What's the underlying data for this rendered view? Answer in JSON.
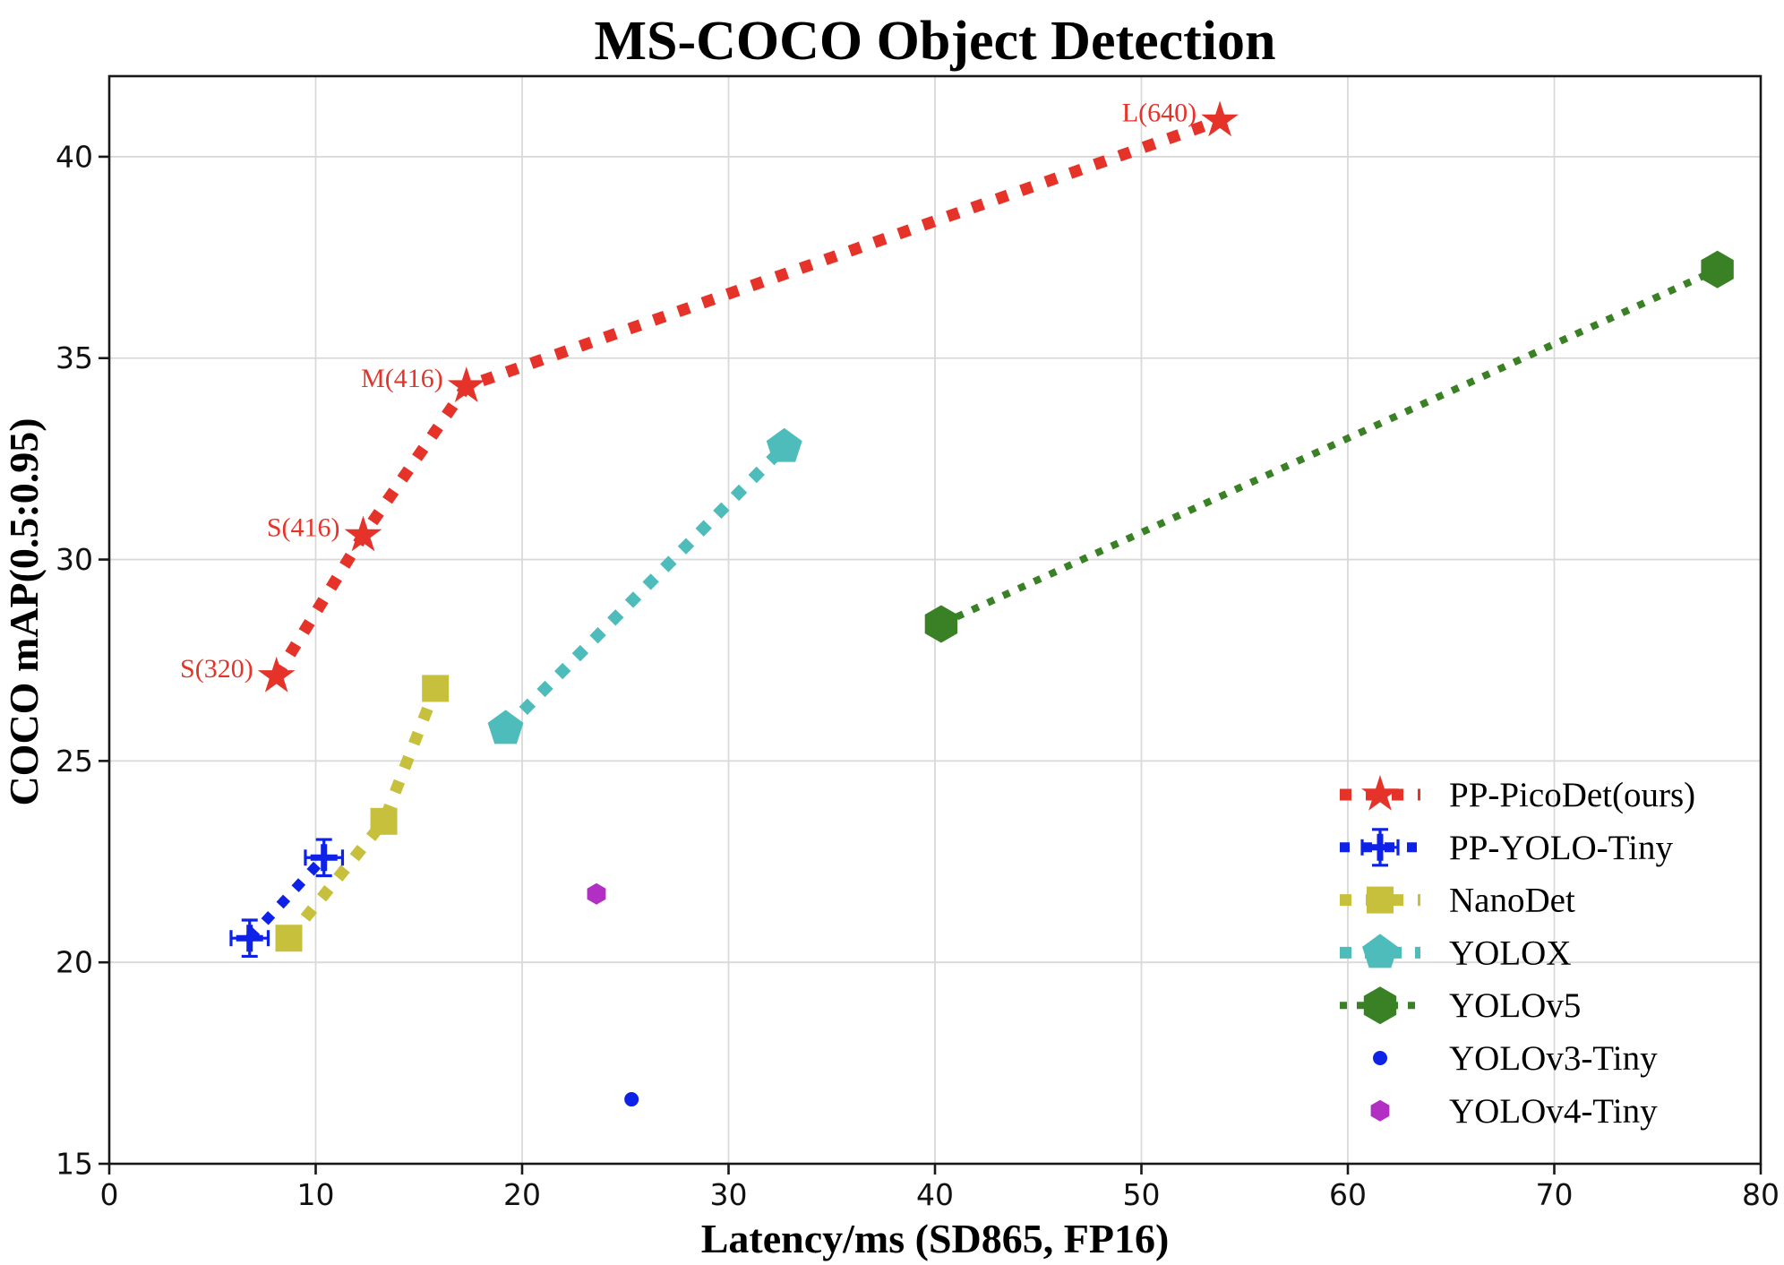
{
  "chart_data": {
    "type": "scatter",
    "title": "MS-COCO Object Detection",
    "xlabel": "Latency/ms (SD865, FP16)",
    "ylabel": "COCO mAP(0.5:0.95)",
    "xlim": [
      0,
      80
    ],
    "ylim": [
      15,
      42
    ],
    "xticks": [
      0,
      10,
      20,
      30,
      40,
      50,
      60,
      70,
      80
    ],
    "yticks": [
      15,
      20,
      25,
      30,
      35,
      40
    ],
    "grid": "on",
    "legend_position": "lower right",
    "grid_color": "#d9d9d9",
    "spine_color": "#181818",
    "series": [
      {
        "name": "PP-PicoDet(ours)",
        "color": "#e63329",
        "marker": "star",
        "size": 22,
        "line": "dotted",
        "lw": 13,
        "dash": "13 16",
        "points": [
          {
            "x": 8.1,
            "y": 27.1,
            "label": "S(320)"
          },
          {
            "x": 12.3,
            "y": 30.6,
            "label": "S(416)"
          },
          {
            "x": 17.3,
            "y": 34.3,
            "label": "M(416)"
          },
          {
            "x": 53.8,
            "y": 40.9,
            "label": "L(640)"
          }
        ]
      },
      {
        "name": "PP-YOLO-Tiny",
        "color": "#0d22e6",
        "marker": "plus",
        "size": 15,
        "line": "dotted",
        "lw": 11,
        "dash": "11 14",
        "xerr": 0.9,
        "yerr": 0.45,
        "points": [
          {
            "x": 6.8,
            "y": 20.6
          },
          {
            "x": 10.4,
            "y": 22.6
          }
        ]
      },
      {
        "name": "NanoDet",
        "color": "#c6c03d",
        "marker": "square",
        "size": 15,
        "line": "dotted",
        "lw": 13,
        "dash": "13 16",
        "points": [
          {
            "x": 8.7,
            "y": 20.6
          },
          {
            "x": 13.3,
            "y": 23.5
          },
          {
            "x": 15.8,
            "y": 26.8
          }
        ]
      },
      {
        "name": "YOLOX",
        "color": "#4fbcbc",
        "marker": "pentagon",
        "size": 21,
        "line": "dotted",
        "lw": 13,
        "dash": "13 15",
        "points": [
          {
            "x": 19.2,
            "y": 25.8
          },
          {
            "x": 32.7,
            "y": 32.8
          }
        ]
      },
      {
        "name": "YOLOv5",
        "color": "#3a8126",
        "marker": "hexagon",
        "size": 21,
        "line": "dotted",
        "lw": 8,
        "dash": "8 11",
        "points": [
          {
            "x": 40.3,
            "y": 28.4
          },
          {
            "x": 77.9,
            "y": 37.2
          }
        ]
      },
      {
        "name": "YOLOv3-Tiny",
        "color": "#0d22e6",
        "marker": "circle",
        "size": 8,
        "line": "none",
        "points": [
          {
            "x": 25.3,
            "y": 16.6
          }
        ]
      },
      {
        "name": "YOLOv4-Tiny",
        "color": "#b12fc3",
        "marker": "hexagon",
        "size": 12,
        "line": "none",
        "points": [
          {
            "x": 23.6,
            "y": 21.7
          }
        ]
      }
    ]
  }
}
